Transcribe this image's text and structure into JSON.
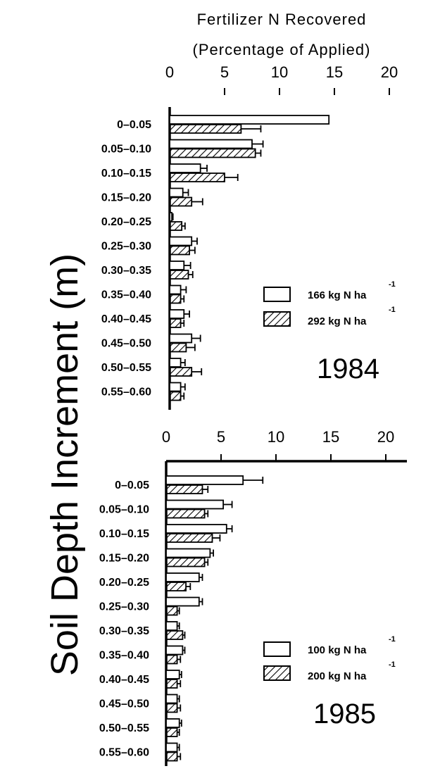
{
  "title_line1": "Fertilizer N Recovered",
  "title_line2": "(Percentage of Applied)",
  "ylabel": "Soil Depth Increment (m)",
  "chart_data": [
    {
      "type": "bar",
      "year": "1984",
      "categories": [
        "0-0.05",
        "0.05-0.10",
        "0.10-0.15",
        "0.15-0.20",
        "0.20-0.25",
        "0.25-0.30",
        "0.30-0.35",
        "0.35-0.40",
        "0.40-0.45",
        "0.45-0.50",
        "0.50-0.55",
        "0.55-0.60"
      ],
      "xticks": [
        "0",
        "5",
        "10",
        "15",
        "20"
      ],
      "xlim": [
        0,
        22
      ],
      "series": [
        {
          "name": "166 kg N ha",
          "sup": "-1",
          "pattern": "open",
          "values": [
            14.5,
            7.5,
            2.8,
            1.2,
            0.2,
            2.0,
            1.3,
            1.0,
            1.3,
            2.0,
            1.0,
            1.0
          ],
          "errors": [
            0.0,
            1.0,
            0.6,
            0.5,
            0.1,
            0.5,
            0.6,
            0.5,
            0.5,
            0.8,
            0.4,
            0.4
          ]
        },
        {
          "name": "292 kg N ha",
          "sup": "-1",
          "pattern": "hatched",
          "values": [
            6.5,
            7.8,
            5.0,
            2.0,
            1.1,
            1.8,
            1.7,
            1.0,
            1.0,
            1.5,
            2.0,
            1.0
          ],
          "errors": [
            1.8,
            0.5,
            1.2,
            1.0,
            0.3,
            0.5,
            0.4,
            0.3,
            0.3,
            0.8,
            0.9,
            0.3
          ]
        }
      ]
    },
    {
      "type": "bar",
      "year": "1985",
      "categories": [
        "0-0.05",
        "0.05-0.10",
        "0.10-0.15",
        "0.15-0.20",
        "0.20-0.25",
        "0.25-0.30",
        "0.30-0.35",
        "0.35-0.40",
        "0.40-0.45",
        "0.45-0.50",
        "0.50-0.55",
        "0.55-0.60"
      ],
      "xticks": [
        "0",
        "5",
        "10",
        "15",
        "20"
      ],
      "xlim": [
        0,
        22
      ],
      "series": [
        {
          "name": "100 kg N ha",
          "sup": "-1",
          "pattern": "open",
          "values": [
            7.0,
            5.2,
            5.5,
            4.0,
            3.0,
            3.0,
            1.0,
            1.5,
            1.2,
            1.0,
            1.2,
            1.0
          ],
          "errors": [
            1.8,
            0.8,
            0.5,
            0.3,
            0.3,
            0.3,
            0.2,
            0.2,
            0.2,
            0.2,
            0.2,
            0.2
          ]
        },
        {
          "name": "200 kg N ha",
          "sup": "-1",
          "pattern": "hatched",
          "values": [
            3.3,
            3.5,
            4.2,
            3.5,
            1.8,
            1.0,
            1.5,
            1.0,
            1.0,
            1.0,
            1.0,
            1.0
          ],
          "errors": [
            0.5,
            0.3,
            0.7,
            0.3,
            0.4,
            0.2,
            0.2,
            0.3,
            0.3,
            0.3,
            0.2,
            0.3
          ]
        }
      ]
    }
  ]
}
